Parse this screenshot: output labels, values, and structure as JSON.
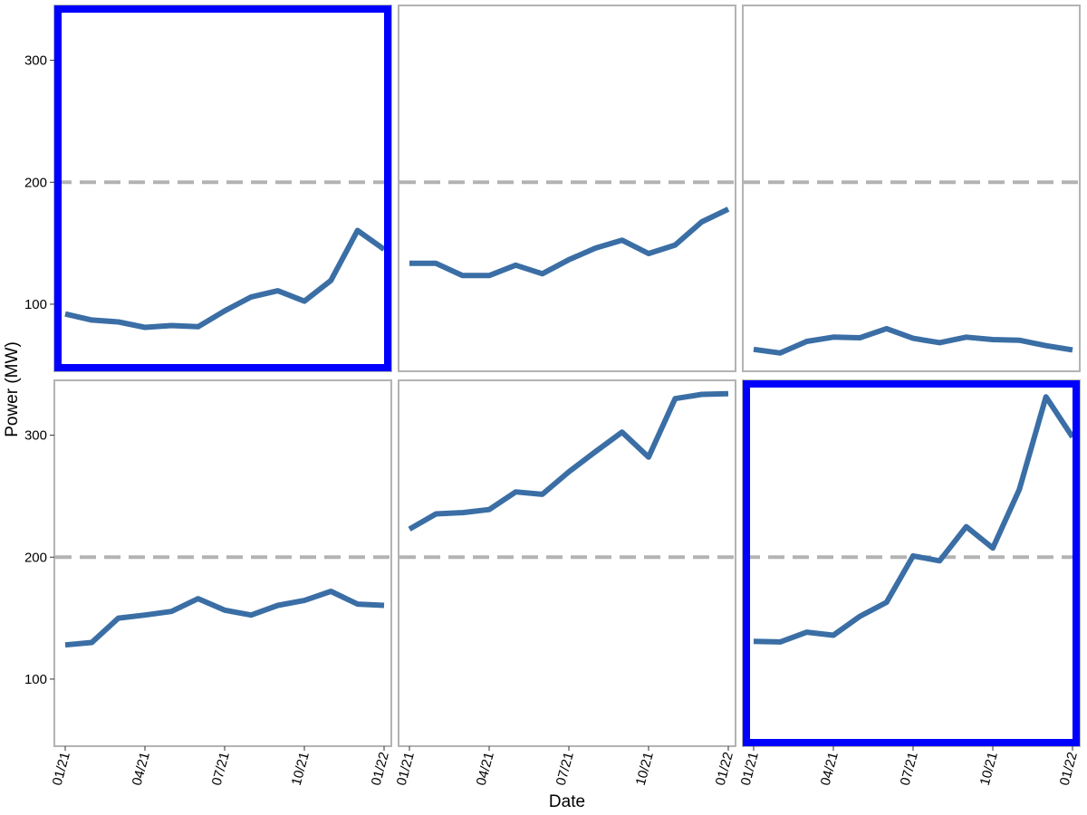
{
  "chart_data": {
    "type": "line",
    "layout": "small-multiples-2x3",
    "xlabel": "Date",
    "ylabel": "Power (MW)",
    "x_ticks": [
      "01/21",
      "04/21",
      "07/21",
      "10/21",
      "01/22"
    ],
    "x": [
      "2021-01",
      "2021-02",
      "2021-03",
      "2021-04",
      "2021-05",
      "2021-06",
      "2021-07",
      "2021-08",
      "2021-09",
      "2021-10",
      "2021-11",
      "2021-12",
      "2022-01"
    ],
    "y_ticks": [
      100,
      200,
      300
    ],
    "ylim": [
      45,
      345
    ],
    "reference_line": {
      "y": 200,
      "style": "dashed",
      "color": "#b3b3b3"
    },
    "line_color": "#3a6ea5",
    "highlight_color": "#0000ff",
    "panels": [
      {
        "row": 1,
        "col": 1,
        "highlighted": true,
        "values": [
          92,
          87,
          85.5,
          81,
          82.5,
          81.5,
          94.5,
          106,
          111,
          102.5,
          119.5,
          160.5,
          145
        ]
      },
      {
        "row": 1,
        "col": 2,
        "highlighted": false,
        "values": [
          133.5,
          133.5,
          123.5,
          123.5,
          132,
          125,
          136.5,
          146,
          152.5,
          141.5,
          148.5,
          167.5,
          178
        ]
      },
      {
        "row": 1,
        "col": 3,
        "highlighted": false,
        "values": [
          63,
          60,
          69.5,
          73,
          72.5,
          80,
          72,
          68.5,
          73,
          71,
          70.5,
          66,
          62.5
        ]
      },
      {
        "row": 2,
        "col": 1,
        "highlighted": false,
        "values": [
          128,
          130,
          150,
          152.5,
          155.5,
          166,
          156.5,
          152.5,
          160.5,
          164.5,
          172,
          161.5,
          160.5
        ]
      },
      {
        "row": 2,
        "col": 2,
        "highlighted": false,
        "values": [
          223,
          235.5,
          236.5,
          239,
          253.5,
          251.5,
          270,
          286.5,
          302.5,
          282,
          330,
          333.5,
          334
        ]
      },
      {
        "row": 2,
        "col": 3,
        "highlighted": true,
        "values": [
          131,
          130.5,
          138.5,
          136,
          151.5,
          163,
          201,
          197,
          225,
          207.5,
          255.5,
          331.5,
          298.5
        ]
      }
    ]
  }
}
